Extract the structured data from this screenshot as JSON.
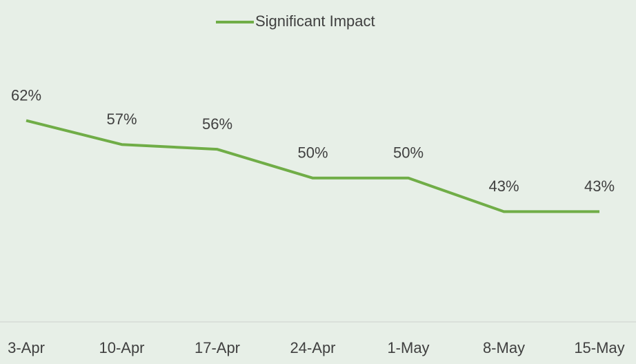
{
  "chart_data": {
    "type": "line",
    "categories": [
      "3-Apr",
      "10-Apr",
      "17-Apr",
      "24-Apr",
      "1-May",
      "8-May",
      "15-May"
    ],
    "series": [
      {
        "name": "Significant Impact",
        "color": "#70ad47",
        "values": [
          62,
          57,
          56,
          50,
          50,
          43,
          43
        ],
        "value_labels": [
          "62%",
          "57%",
          "56%",
          "50%",
          "50%",
          "43%",
          "43%"
        ]
      }
    ],
    "ylim": [
      20,
      70
    ],
    "legend": "top"
  }
}
